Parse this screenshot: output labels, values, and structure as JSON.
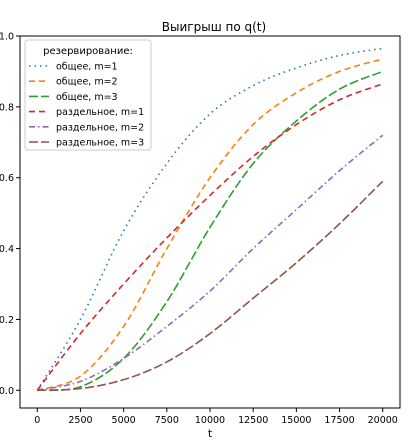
{
  "chart_data": {
    "type": "line",
    "title": "Выигрыш по q(t)",
    "xlabel": "t",
    "ylabel": "",
    "xlim": [
      -1000,
      21000
    ],
    "ylim": [
      -0.05,
      1.0
    ],
    "grid": false,
    "legend_title": "резервирование:",
    "legend_position": "top-left",
    "xticks": [
      "0",
      "2500",
      "5000",
      "7500",
      "10000",
      "12500",
      "15000",
      "17500",
      "20000"
    ],
    "yticks": [
      "0.0",
      "0.2",
      "0.4",
      "0.6",
      "0.8",
      "1.0"
    ],
    "series": [
      {
        "name": "общее, m=1",
        "color": "#1f77b4",
        "dash": "dotted",
        "x": [
          0,
          2500,
          5000,
          7500,
          10000,
          12500,
          15000,
          17500,
          20000
        ],
        "y": [
          0.0,
          0.2,
          0.45,
          0.64,
          0.78,
          0.86,
          0.91,
          0.945,
          0.965
        ]
      },
      {
        "name": "общее, m=2",
        "color": "#ff7f0e",
        "dash": "dashed",
        "x": [
          0,
          2500,
          5000,
          7500,
          10000,
          12500,
          15000,
          17500,
          20000
        ],
        "y": [
          0.0,
          0.04,
          0.18,
          0.4,
          0.6,
          0.75,
          0.84,
          0.9,
          0.935
        ]
      },
      {
        "name": "общее, m=3",
        "color": "#2ca02c",
        "dash": "longdash",
        "x": [
          0,
          2500,
          5000,
          7500,
          10000,
          12500,
          15000,
          17500,
          20000
        ],
        "y": [
          0.0,
          0.01,
          0.09,
          0.25,
          0.46,
          0.64,
          0.76,
          0.85,
          0.9
        ]
      },
      {
        "name": "раздельное, m=1",
        "color": "#d62728",
        "dash": "dashed",
        "x": [
          0,
          2500,
          5000,
          7500,
          10000,
          12500,
          15000,
          17500,
          20000
        ],
        "y": [
          0.0,
          0.16,
          0.3,
          0.43,
          0.55,
          0.66,
          0.75,
          0.82,
          0.865
        ]
      },
      {
        "name": "раздельное, m=2",
        "color": "#9467bd",
        "dash": "dashdot",
        "x": [
          0,
          2500,
          5000,
          7500,
          10000,
          12500,
          15000,
          17500,
          20000
        ],
        "y": [
          0.0,
          0.025,
          0.09,
          0.18,
          0.28,
          0.4,
          0.51,
          0.62,
          0.72
        ]
      },
      {
        "name": "раздельное, m=3",
        "color": "#8c564b",
        "dash": "longdash",
        "x": [
          0,
          2500,
          5000,
          7500,
          10000,
          12500,
          15000,
          17500,
          20000
        ],
        "y": [
          0.0,
          0.005,
          0.03,
          0.08,
          0.16,
          0.26,
          0.36,
          0.47,
          0.59
        ]
      }
    ]
  }
}
